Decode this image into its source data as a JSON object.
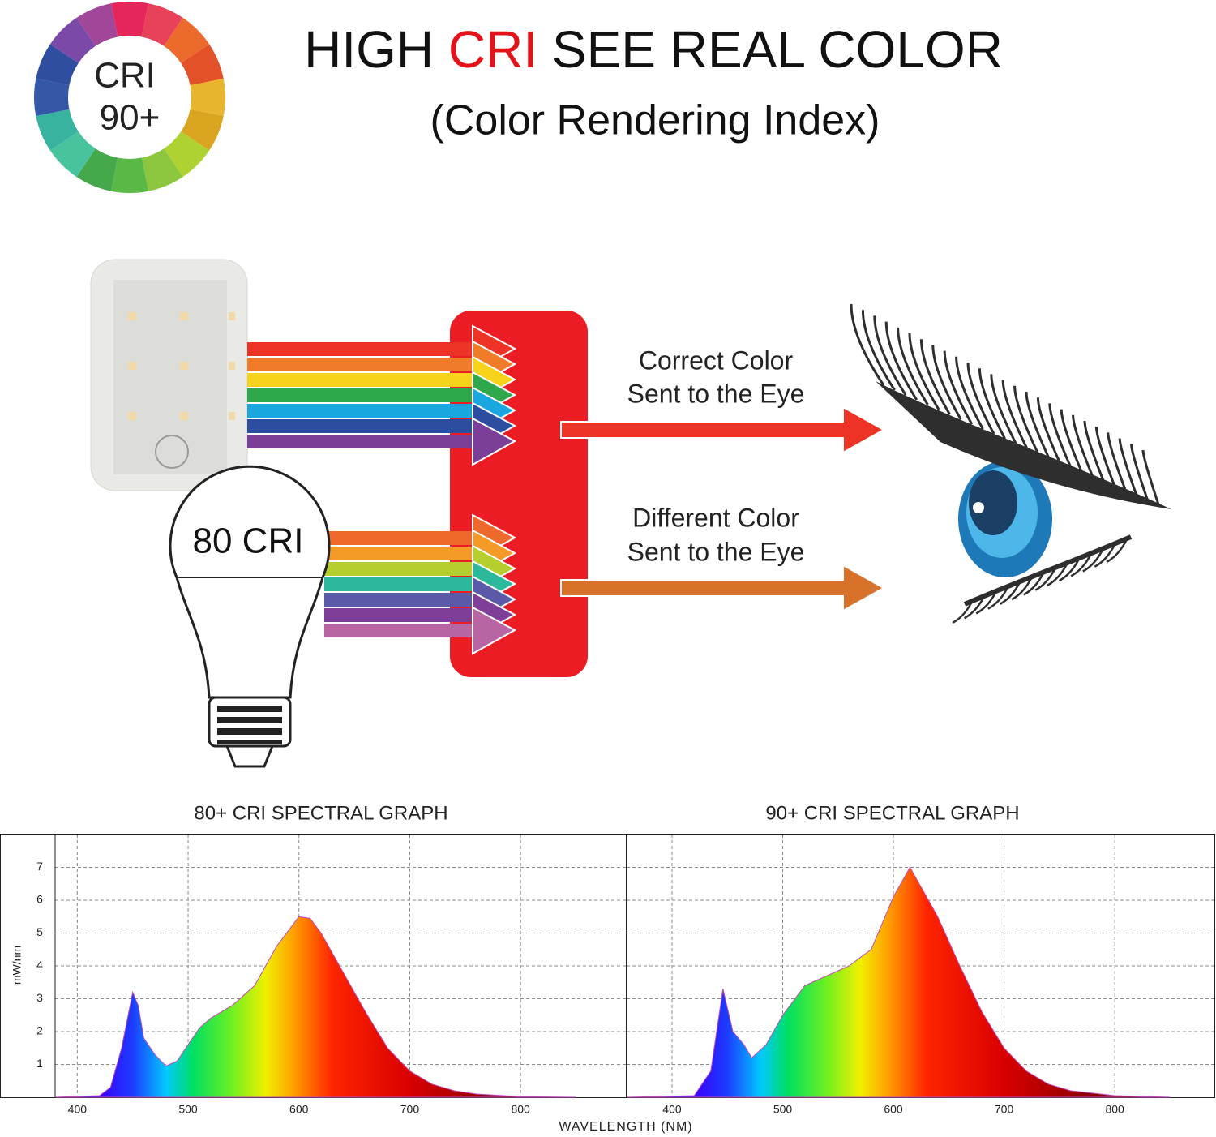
{
  "header": {
    "badge": [
      "CRI",
      "90+"
    ],
    "title": [
      "HIGH ",
      "CRI",
      " SEE REAL COLOR"
    ],
    "subtitle": "(Color Rendering Index)"
  },
  "diagram": {
    "bulb_label": "80 CRI",
    "top_arrow": [
      "Correct Color",
      "Sent to the Eye"
    ],
    "bottom_arrow": [
      "Different Color",
      "Sent to the Eye"
    ]
  },
  "chart_data": [
    {
      "type": "area",
      "title": "80+ CRI SPECTRAL GRAPH",
      "ylabel": "mW/nm",
      "xlabel": "WAVELENGTH (NM)",
      "x": [
        380,
        420,
        430,
        440,
        450,
        455,
        460,
        470,
        480,
        490,
        500,
        510,
        520,
        540,
        560,
        580,
        600,
        610,
        620,
        640,
        660,
        680,
        700,
        720,
        740,
        760,
        800,
        850
      ],
      "values": [
        0,
        0.05,
        0.3,
        1.5,
        3.2,
        2.8,
        1.8,
        1.3,
        0.95,
        1.1,
        1.6,
        2.1,
        2.4,
        2.8,
        3.4,
        4.6,
        5.5,
        5.45,
        5.0,
        3.8,
        2.6,
        1.5,
        0.8,
        0.4,
        0.2,
        0.1,
        0.02,
        0
      ],
      "xlim": [
        380,
        895
      ],
      "ylim": [
        0,
        8
      ],
      "xticks": [
        400,
        500,
        600,
        700,
        800
      ],
      "yticks": [
        1,
        2,
        3,
        4,
        5,
        6,
        7
      ],
      "grid": true,
      "ytick_labels": true
    },
    {
      "type": "area",
      "title": "90+ CRI SPECTRAL GRAPH",
      "x": [
        359,
        420,
        435,
        446,
        455,
        465,
        472,
        485,
        500,
        520,
        560,
        580,
        600,
        615,
        640,
        660,
        680,
        700,
        720,
        740,
        760,
        800,
        850
      ],
      "values": [
        0,
        0.05,
        0.8,
        3.3,
        2.0,
        1.6,
        1.2,
        1.6,
        2.5,
        3.4,
        4.0,
        4.5,
        6.1,
        7.0,
        5.5,
        4.0,
        2.6,
        1.5,
        0.8,
        0.4,
        0.2,
        0.05,
        0
      ],
      "xlim": [
        359,
        890
      ],
      "ylim": [
        0,
        8
      ],
      "xticks": [
        400,
        500,
        600,
        700,
        800
      ],
      "yticks": [
        1,
        2,
        3,
        4,
        5,
        6,
        7
      ],
      "grid": true,
      "ytick_labels": false
    }
  ]
}
